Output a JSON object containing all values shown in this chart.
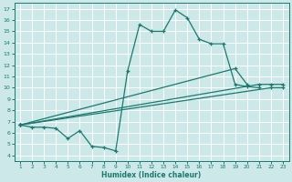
{
  "xlabel": "Humidex (Indice chaleur)",
  "background_color": "#cce8e8",
  "grid_color": "#ffffff",
  "line_color": "#1a7a6e",
  "xlim": [
    0.5,
    23.5
  ],
  "ylim": [
    3.5,
    17.5
  ],
  "xticks": [
    1,
    2,
    3,
    4,
    5,
    6,
    7,
    8,
    9,
    10,
    11,
    12,
    13,
    14,
    15,
    16,
    17,
    18,
    19,
    20,
    21,
    22,
    23
  ],
  "yticks": [
    4,
    5,
    6,
    7,
    8,
    9,
    10,
    11,
    12,
    13,
    14,
    15,
    16,
    17
  ],
  "lines": [
    {
      "x": [
        1,
        2,
        3,
        4,
        5,
        6,
        7,
        8,
        9,
        10,
        11,
        12,
        13,
        14,
        15,
        16,
        17,
        18,
        19,
        20,
        21
      ],
      "y": [
        6.7,
        6.5,
        6.5,
        6.4,
        5.5,
        6.2,
        4.8,
        4.7,
        4.4,
        11.5,
        15.6,
        15.0,
        15.0,
        16.9,
        16.2,
        14.3,
        13.9,
        13.9,
        10.3,
        10.1,
        10.0
      ]
    },
    {
      "x": [
        1,
        22,
        23
      ],
      "y": [
        6.7,
        10.0,
        10.0
      ]
    },
    {
      "x": [
        1,
        21,
        22,
        23
      ],
      "y": [
        6.7,
        10.3,
        10.3,
        10.3
      ]
    },
    {
      "x": [
        1,
        19,
        20
      ],
      "y": [
        6.7,
        11.7,
        10.3
      ]
    }
  ]
}
